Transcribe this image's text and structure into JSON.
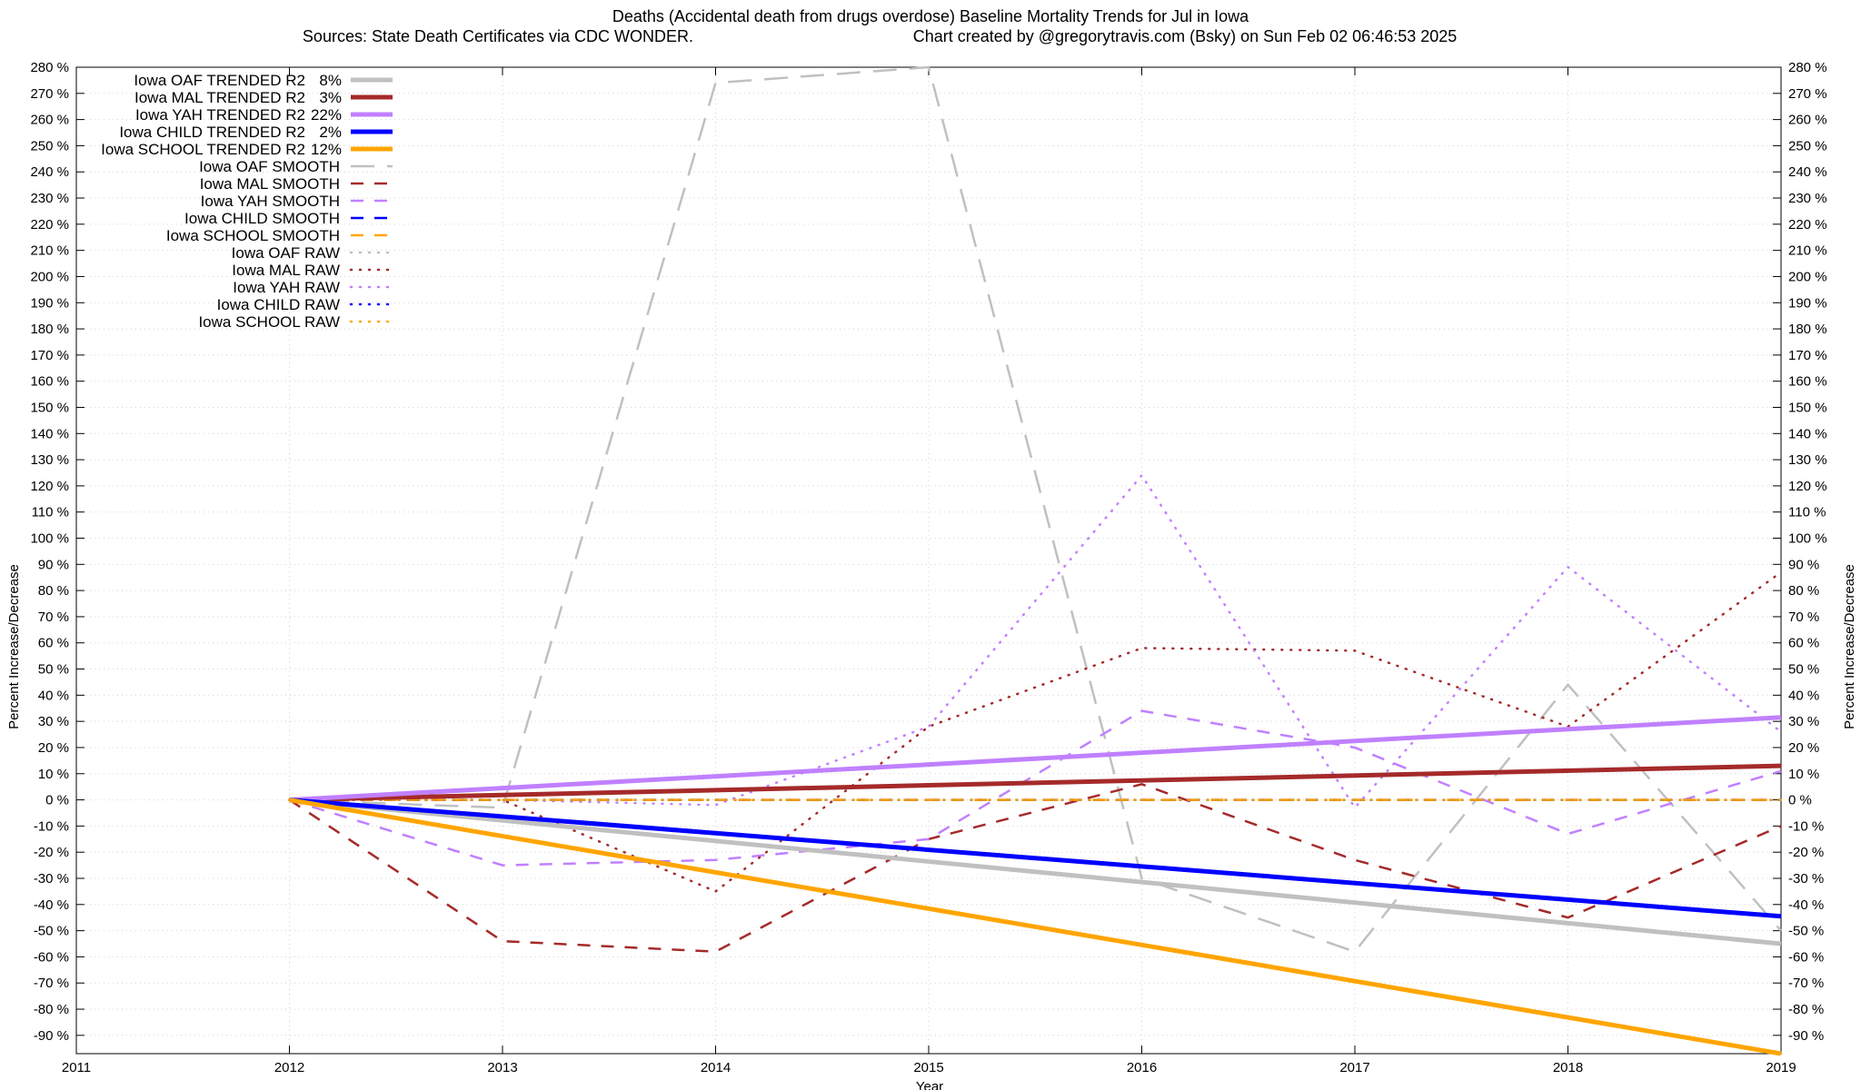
{
  "chart_data": {
    "type": "line",
    "title": "Deaths (Accidental death from drugs overdose)  Baseline Mortality Trends for Jul in Iowa",
    "subtitle_left": "Sources: State Death Certificates via CDC WONDER.",
    "subtitle_right": "Chart created by @gregorytravis.com (Bsky) on Sun Feb 02 06:46:53 2025",
    "xlabel": "Year",
    "ylabel_left": "Percent Increase/Decrease",
    "ylabel_right": "Percent Increase/Decrease",
    "xlim": [
      2011,
      2019
    ],
    "ylim": [
      -97,
      280
    ],
    "x_ticks": [
      2011,
      2012,
      2013,
      2014,
      2015,
      2016,
      2017,
      2018,
      2019
    ],
    "x_tick_labels": [
      "2011",
      "2012",
      "2013",
      "2014",
      "2015",
      "2016",
      "2017",
      "2018",
      "2019"
    ],
    "y_ticks": [
      280,
      270,
      260,
      250,
      240,
      230,
      220,
      210,
      200,
      190,
      180,
      170,
      160,
      150,
      140,
      130,
      120,
      110,
      100,
      90,
      80,
      70,
      60,
      50,
      40,
      30,
      20,
      10,
      0,
      -10,
      -20,
      -30,
      -40,
      -50,
      -60,
      -70,
      -80,
      -90
    ],
    "y_tick_labels": [
      "280 %",
      "270 %",
      "260 %",
      "250 %",
      "240 %",
      "230 %",
      "220 %",
      "210 %",
      "200 %",
      "190 %",
      "180 %",
      "170 %",
      "160 %",
      "150 %",
      "140 %",
      "130 %",
      "120 %",
      "110 %",
      "100 %",
      "90 %",
      "80 %",
      "70 %",
      "60 %",
      "50 %",
      "40 %",
      "30 %",
      "20 %",
      "10 %",
      "0 %",
      "-10 %",
      "-20 %",
      "-30 %",
      "-40 %",
      "-50 %",
      "-60 %",
      "-70 %",
      "-80 %",
      "-90 %"
    ],
    "grid": true,
    "legend_position": "top-left",
    "series": [
      {
        "name": "Iowa OAF TRENDED R2",
        "r2": "8%",
        "style": "solid",
        "color": "#c0c0c0",
        "x": [
          2012,
          2019
        ],
        "y": [
          0,
          -55
        ]
      },
      {
        "name": "Iowa MAL TRENDED R2",
        "r2": "3%",
        "style": "solid",
        "color": "#a52a2a",
        "x": [
          2012,
          2019
        ],
        "y": [
          0,
          13
        ]
      },
      {
        "name": "Iowa YAH TRENDED R2",
        "r2": "22%",
        "style": "solid",
        "color": "#c080ff",
        "x": [
          2012,
          2019
        ],
        "y": [
          0,
          31.5
        ]
      },
      {
        "name": "Iowa CHILD TRENDED R2",
        "r2": "2%",
        "style": "solid",
        "color": "#0000ff",
        "x": [
          2012,
          2019
        ],
        "y": [
          0,
          -44.5
        ]
      },
      {
        "name": "Iowa SCHOOL TRENDED R2",
        "r2": "12%",
        "style": "solid",
        "color": "#ffa500",
        "x": [
          2012,
          2019
        ],
        "y": [
          0,
          -97
        ]
      },
      {
        "name": "Iowa OAF SMOOTH",
        "style": "dash-long",
        "color": "#c0c0c0",
        "x": [
          2012,
          2013,
          2014,
          2015,
          2016,
          2017,
          2018,
          2019
        ],
        "y": [
          0,
          -3,
          274,
          280,
          -30,
          -58,
          44,
          -50
        ]
      },
      {
        "name": "Iowa MAL SMOOTH",
        "style": "dash",
        "color": "#a52a2a",
        "x": [
          2012,
          2013,
          2014,
          2015,
          2016,
          2017,
          2018,
          2019
        ],
        "y": [
          0,
          -54,
          -58,
          -15,
          6,
          -23,
          -45,
          -10
        ]
      },
      {
        "name": "Iowa YAH SMOOTH",
        "style": "dash",
        "color": "#c080ff",
        "x": [
          2012,
          2013,
          2014,
          2015,
          2016,
          2017,
          2018,
          2019
        ],
        "y": [
          0,
          -25,
          -23,
          -15,
          34,
          20,
          -13,
          11
        ]
      },
      {
        "name": "Iowa CHILD SMOOTH",
        "style": "dash",
        "color": "#0000ff",
        "x": [
          2012,
          2013,
          2014,
          2015,
          2016,
          2017,
          2018,
          2019
        ],
        "y": [
          0,
          0,
          0,
          0,
          0,
          0,
          0,
          0
        ]
      },
      {
        "name": "Iowa SCHOOL SMOOTH",
        "style": "dash",
        "color": "#ffa500",
        "x": [
          2012,
          2013,
          2014,
          2015,
          2016,
          2017,
          2018,
          2019
        ],
        "y": [
          0,
          0,
          0,
          0,
          0,
          0,
          0,
          0
        ]
      },
      {
        "name": "Iowa OAF RAW",
        "style": "dot",
        "color": "#c0c0c0",
        "x": [
          2012,
          2013,
          2014,
          2015,
          2016,
          2017,
          2018,
          2019
        ],
        "y": [
          0,
          0,
          0,
          0,
          0,
          0,
          0,
          0
        ]
      },
      {
        "name": "Iowa MAL RAW",
        "style": "dot",
        "color": "#a52a2a",
        "x": [
          2012,
          2013,
          2014,
          2015,
          2016,
          2017,
          2018,
          2019
        ],
        "y": [
          0,
          0,
          -35,
          28,
          58,
          57,
          28,
          87
        ]
      },
      {
        "name": "Iowa YAH RAW",
        "style": "dot",
        "color": "#c080ff",
        "x": [
          2012,
          2013,
          2014,
          2015,
          2016,
          2017,
          2018,
          2019
        ],
        "y": [
          0,
          0,
          -2,
          28,
          124,
          -3,
          89,
          26
        ]
      },
      {
        "name": "Iowa CHILD RAW",
        "style": "dot",
        "color": "#0000ff",
        "x": [
          2012,
          2013,
          2014,
          2015,
          2016,
          2017,
          2018,
          2019
        ],
        "y": [
          0,
          0,
          0,
          0,
          0,
          0,
          0,
          0
        ]
      },
      {
        "name": "Iowa SCHOOL RAW",
        "style": "dot",
        "color": "#ffa500",
        "x": [
          2012,
          2013,
          2014,
          2015,
          2016,
          2017,
          2018,
          2019
        ],
        "y": [
          0,
          0,
          0,
          0,
          0,
          0,
          0,
          0
        ]
      }
    ]
  }
}
